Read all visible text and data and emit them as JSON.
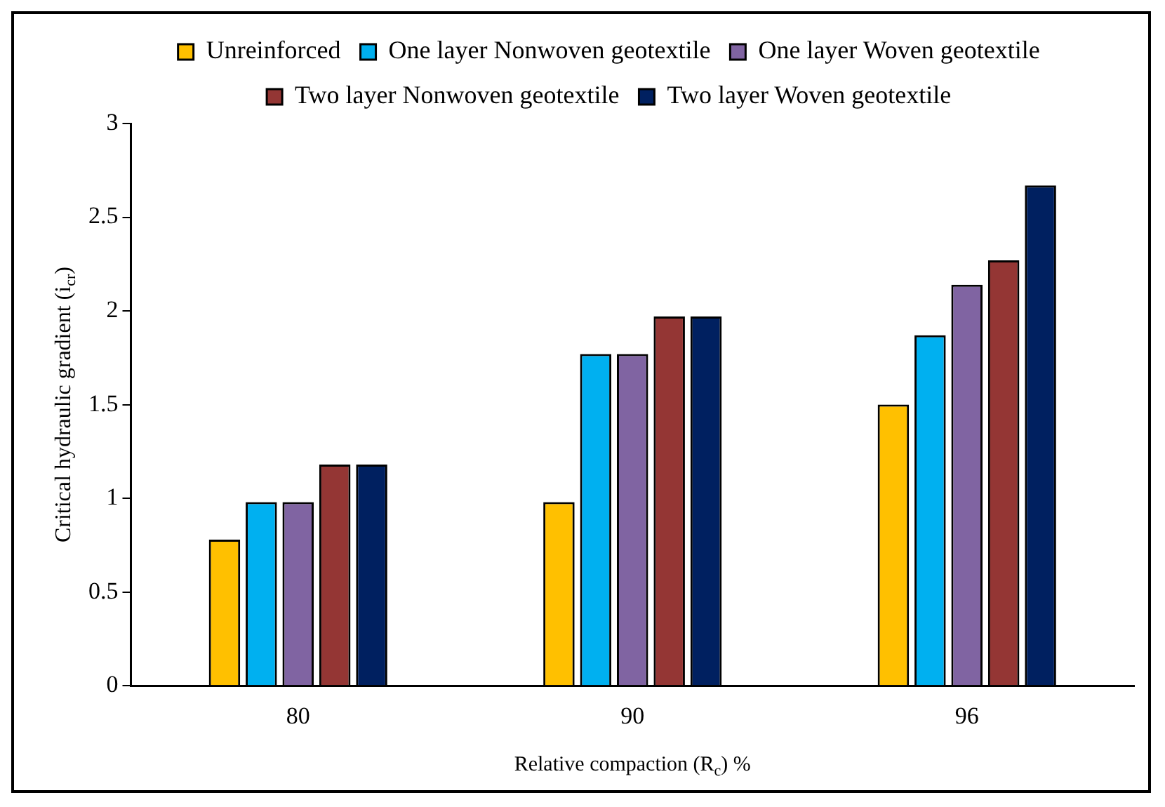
{
  "chart_data": {
    "type": "bar",
    "xlabel": "Relative compaction (R$_{c}$) %",
    "ylabel": "Critical hydraulic gradient (i$_{cr}$)",
    "categories": [
      "80",
      "90",
      "96"
    ],
    "series": [
      {
        "name": "Unreinforced",
        "color": "#ffc000",
        "values": [
          0.78,
          0.98,
          1.5
        ]
      },
      {
        "name": "One layer Nonwoven geotextile",
        "color": "#00b0f0",
        "values": [
          0.98,
          1.77,
          1.87
        ]
      },
      {
        "name": "One layer Woven geotextile",
        "color": "#8064a2",
        "values": [
          0.98,
          1.77,
          2.14
        ]
      },
      {
        "name": "Two layer Nonwoven geotextile",
        "color": "#943634",
        "values": [
          1.18,
          1.97,
          2.27
        ]
      },
      {
        "name": "Two layer Woven geotextile",
        "color": "#002060",
        "values": [
          1.18,
          1.97,
          2.67
        ]
      }
    ],
    "ylim": [
      0,
      3
    ],
    "yticks": [
      0,
      0.5,
      1,
      1.5,
      2,
      2.5,
      3
    ],
    "grid": false,
    "legend": "top"
  }
}
